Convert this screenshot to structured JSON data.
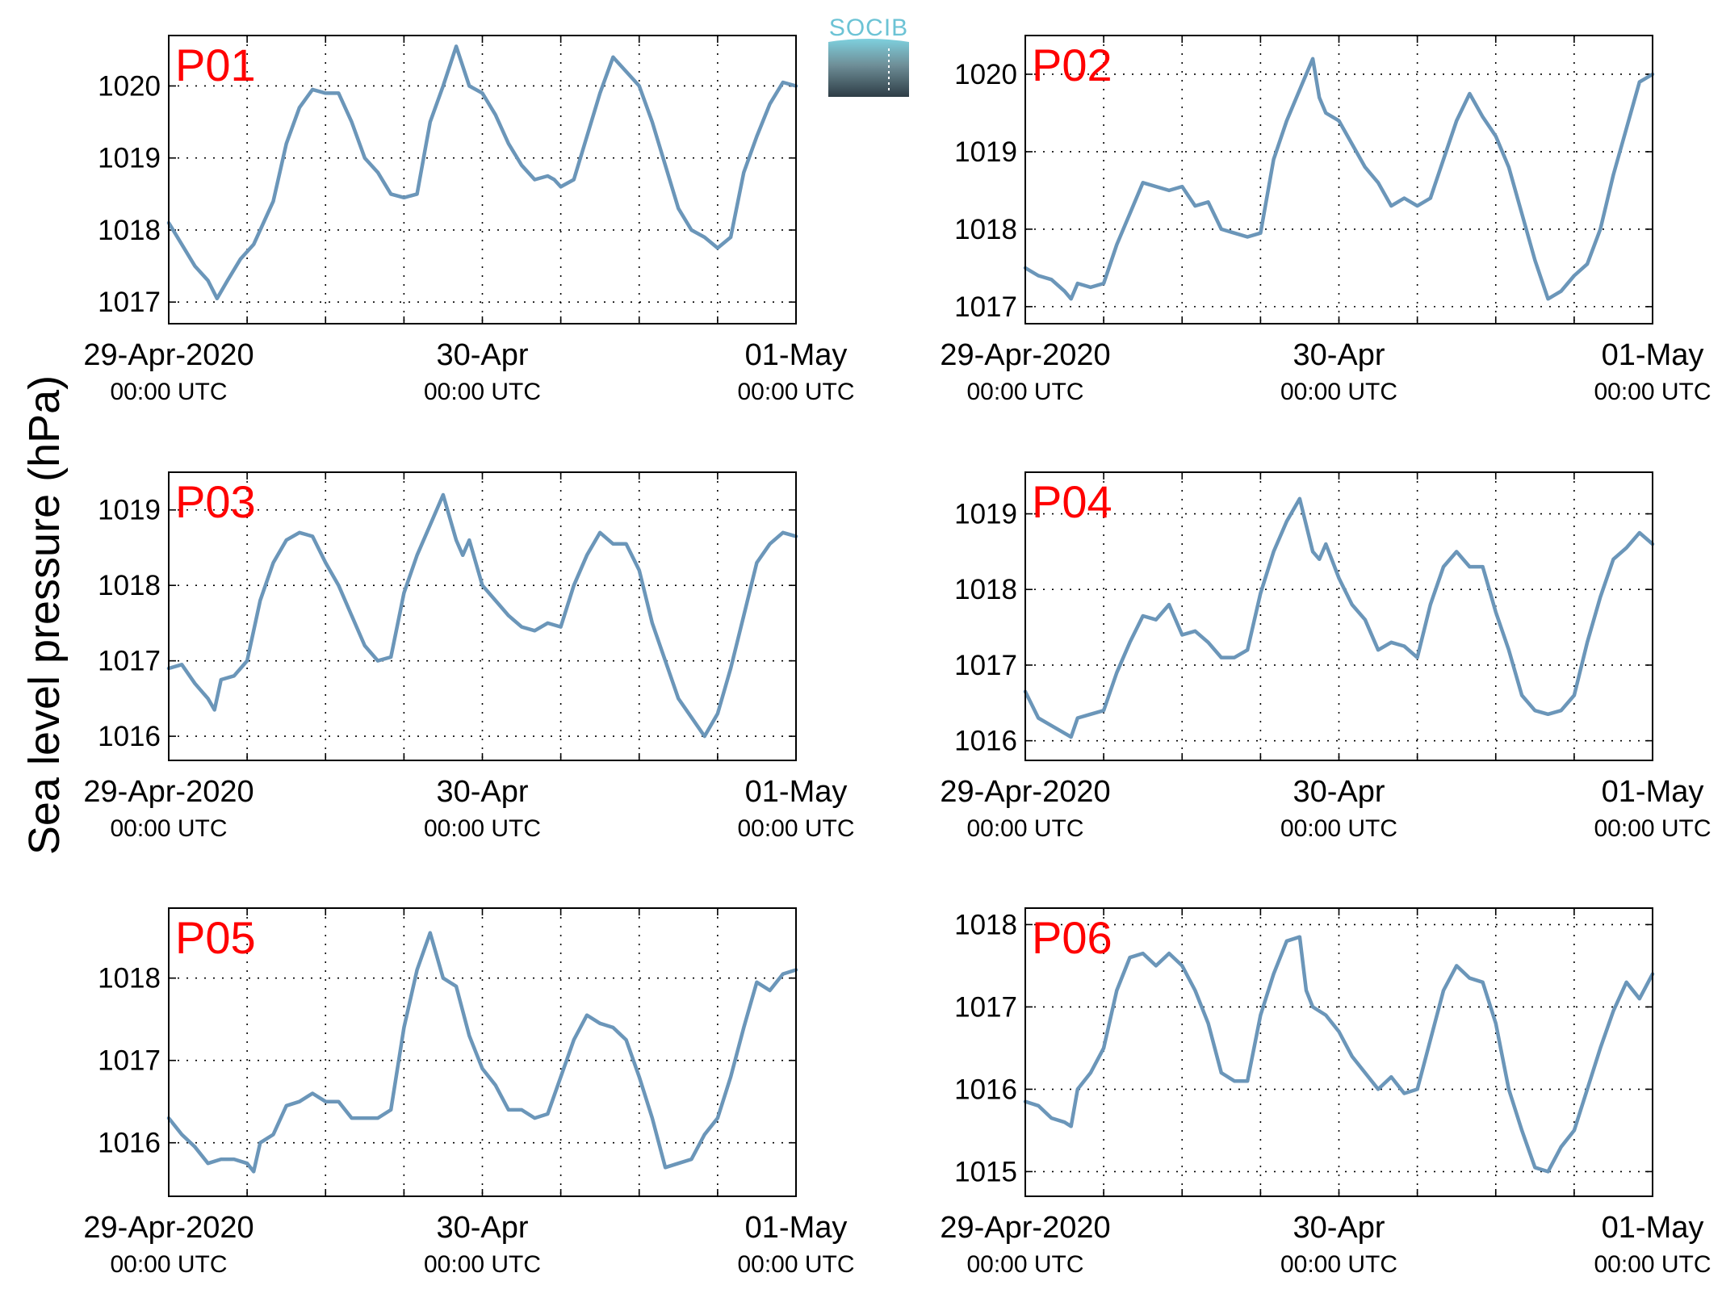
{
  "chart_data": {
    "ylabel": "Sea level pressure (hPa)",
    "logo_text": "SOCIB",
    "x_tick_labels": [
      {
        "main": "29-Apr-2020",
        "sub": "00:00 UTC"
      },
      {
        "main": "30-Apr",
        "sub": "00:00 UTC"
      },
      {
        "main": "01-May",
        "sub": "00:00 UTC"
      }
    ],
    "colors": {
      "line": "#6b96b9",
      "panel_label": "#ff0000",
      "logo": "#6cc3d5"
    },
    "grid": true,
    "panels": [
      {
        "id": "P01",
        "type": "line",
        "xlim": [
          0,
          48
        ],
        "ylim": [
          1016.7,
          1020.7
        ],
        "yticks": [
          1017,
          1018,
          1019,
          1020
        ],
        "x": [
          0,
          1,
          2,
          3,
          3.7,
          4.5,
          5.5,
          6.5,
          8,
          9,
          10,
          11,
          12,
          13,
          14,
          15,
          16,
          17,
          18,
          19,
          19.5,
          20,
          21,
          22,
          23,
          24,
          25,
          26,
          27,
          28,
          29,
          29.5,
          30,
          31,
          32,
          33,
          34,
          35,
          36,
          37,
          38,
          39,
          40,
          41,
          42,
          43,
          44,
          45,
          46,
          47,
          48
        ],
        "y": [
          1018.1,
          1017.8,
          1017.5,
          1017.3,
          1017.05,
          1017.3,
          1017.6,
          1017.8,
          1018.4,
          1019.2,
          1019.7,
          1019.95,
          1019.9,
          1019.9,
          1019.5,
          1019.0,
          1018.8,
          1018.5,
          1018.45,
          1018.5,
          1019.0,
          1019.5,
          1020.0,
          1020.55,
          1020.0,
          1019.9,
          1019.6,
          1019.2,
          1018.9,
          1018.7,
          1018.75,
          1018.7,
          1018.6,
          1018.7,
          1019.3,
          1019.9,
          1020.4,
          1020.2,
          1020.0,
          1019.5,
          1018.9,
          1018.3,
          1018.0,
          1017.9,
          1017.75,
          1017.9,
          1018.8,
          1019.3,
          1019.75,
          1020.05,
          1020.0
        ]
      },
      {
        "id": "P02",
        "type": "line",
        "xlim": [
          0,
          48
        ],
        "ylim": [
          1016.78,
          1020.5
        ],
        "yticks": [
          1017,
          1018,
          1019,
          1020
        ],
        "x": [
          0,
          1,
          2,
          3,
          3.5,
          4,
          5,
          6,
          7,
          8,
          9,
          10,
          11,
          12,
          13,
          14,
          15,
          16,
          17,
          18,
          19,
          20,
          21,
          22,
          22.5,
          23,
          24,
          25,
          26,
          27,
          28,
          29,
          30,
          31,
          32,
          33,
          34,
          35,
          36,
          37,
          38,
          39,
          40,
          41,
          42,
          43,
          44,
          45,
          46,
          47,
          48
        ],
        "y": [
          1017.5,
          1017.4,
          1017.35,
          1017.2,
          1017.1,
          1017.3,
          1017.25,
          1017.3,
          1017.8,
          1018.2,
          1018.6,
          1018.55,
          1018.5,
          1018.55,
          1018.3,
          1018.35,
          1018.0,
          1017.95,
          1017.9,
          1017.95,
          1018.9,
          1019.4,
          1019.8,
          1020.2,
          1019.7,
          1019.5,
          1019.4,
          1019.1,
          1018.8,
          1018.6,
          1018.3,
          1018.4,
          1018.3,
          1018.4,
          1018.9,
          1019.4,
          1019.75,
          1019.45,
          1019.2,
          1018.8,
          1018.2,
          1017.6,
          1017.1,
          1017.2,
          1017.4,
          1017.55,
          1018.0,
          1018.7,
          1019.3,
          1019.9,
          1020.0
        ]
      },
      {
        "id": "P03",
        "type": "line",
        "xlim": [
          0,
          48
        ],
        "ylim": [
          1015.68,
          1019.5
        ],
        "yticks": [
          1016,
          1017,
          1018,
          1019
        ],
        "x": [
          0,
          1,
          2,
          3,
          3.5,
          4,
          5,
          6,
          7,
          8,
          9,
          10,
          11,
          12,
          13,
          14,
          15,
          16,
          17,
          18,
          19,
          20,
          21,
          22,
          22.5,
          23,
          24,
          25,
          26,
          27,
          28,
          29,
          30,
          31,
          32,
          33,
          34,
          35,
          36,
          37,
          38,
          39,
          40,
          41,
          42,
          43,
          44,
          45,
          46,
          47,
          48
        ],
        "y": [
          1016.9,
          1016.95,
          1016.7,
          1016.5,
          1016.35,
          1016.75,
          1016.8,
          1017.0,
          1017.8,
          1018.3,
          1018.6,
          1018.7,
          1018.65,
          1018.3,
          1018.0,
          1017.6,
          1017.2,
          1017.0,
          1017.05,
          1017.9,
          1018.4,
          1018.8,
          1019.2,
          1018.6,
          1018.4,
          1018.6,
          1018.0,
          1017.8,
          1017.6,
          1017.45,
          1017.4,
          1017.5,
          1017.45,
          1018.0,
          1018.4,
          1018.7,
          1018.55,
          1018.55,
          1018.2,
          1017.5,
          1017.0,
          1016.5,
          1016.25,
          1016.0,
          1016.3,
          1016.9,
          1017.6,
          1018.3,
          1018.55,
          1018.7,
          1018.65
        ]
      },
      {
        "id": "P04",
        "type": "line",
        "xlim": [
          0,
          48
        ],
        "ylim": [
          1015.74,
          1019.55
        ],
        "yticks": [
          1016,
          1017,
          1018,
          1019
        ],
        "x": [
          0,
          1,
          2,
          3,
          3.5,
          4,
          5,
          6,
          7,
          8,
          9,
          10,
          11,
          12,
          13,
          14,
          15,
          16,
          17,
          18,
          19,
          20,
          21,
          22,
          22.5,
          23,
          24,
          25,
          26,
          27,
          28,
          29,
          30,
          31,
          32,
          33,
          34,
          35,
          36,
          37,
          38,
          39,
          40,
          41,
          42,
          43,
          44,
          45,
          46,
          47,
          48
        ],
        "y": [
          1016.65,
          1016.3,
          1016.2,
          1016.1,
          1016.05,
          1016.3,
          1016.35,
          1016.4,
          1016.9,
          1017.3,
          1017.65,
          1017.6,
          1017.8,
          1017.4,
          1017.45,
          1017.3,
          1017.1,
          1017.1,
          1017.2,
          1017.95,
          1018.5,
          1018.9,
          1019.2,
          1018.5,
          1018.4,
          1018.6,
          1018.15,
          1017.8,
          1017.6,
          1017.2,
          1017.3,
          1017.25,
          1017.1,
          1017.8,
          1018.3,
          1018.5,
          1018.3,
          1018.3,
          1017.7,
          1017.2,
          1016.6,
          1016.4,
          1016.35,
          1016.4,
          1016.6,
          1017.3,
          1017.9,
          1018.4,
          1018.55,
          1018.75,
          1018.6
        ]
      },
      {
        "id": "P05",
        "type": "line",
        "xlim": [
          0,
          48
        ],
        "ylim": [
          1015.35,
          1018.85
        ],
        "yticks": [
          1016,
          1017,
          1018
        ],
        "x": [
          0,
          1,
          2,
          3,
          4,
          5,
          6,
          6.5,
          7,
          8,
          9,
          10,
          11,
          12,
          13,
          14,
          15,
          16,
          17,
          18,
          19,
          20,
          21,
          21.5,
          22,
          23,
          24,
          25,
          26,
          27,
          28,
          29,
          30,
          31,
          32,
          33,
          34,
          35,
          36,
          37,
          38,
          39,
          40,
          41,
          42,
          43,
          44,
          45,
          46,
          47,
          48
        ],
        "y": [
          1016.3,
          1016.1,
          1015.95,
          1015.75,
          1015.8,
          1015.8,
          1015.75,
          1015.65,
          1016.0,
          1016.1,
          1016.45,
          1016.5,
          1016.6,
          1016.5,
          1016.5,
          1016.3,
          1016.3,
          1016.3,
          1016.4,
          1017.4,
          1018.1,
          1018.55,
          1018.0,
          1017.95,
          1017.9,
          1017.3,
          1016.9,
          1016.7,
          1016.4,
          1016.4,
          1016.3,
          1016.35,
          1016.8,
          1017.25,
          1017.55,
          1017.45,
          1017.4,
          1017.25,
          1016.8,
          1016.3,
          1015.7,
          1015.75,
          1015.8,
          1016.1,
          1016.3,
          1016.8,
          1017.4,
          1017.95,
          1017.85,
          1018.05,
          1018.1
        ]
      },
      {
        "id": "P06",
        "type": "line",
        "xlim": [
          0,
          48
        ],
        "ylim": [
          1014.7,
          1018.2
        ],
        "yticks": [
          1015,
          1016,
          1017,
          1018
        ],
        "x": [
          0,
          1,
          2,
          3,
          3.5,
          4,
          5,
          6,
          7,
          8,
          9,
          10,
          11,
          12,
          13,
          14,
          15,
          16,
          17,
          18,
          19,
          20,
          21,
          21.5,
          22,
          23,
          24,
          25,
          26,
          27,
          28,
          29,
          30,
          31,
          32,
          33,
          34,
          35,
          36,
          37,
          38,
          39,
          40,
          41,
          42,
          43,
          44,
          45,
          46,
          47,
          48
        ],
        "y": [
          1015.85,
          1015.8,
          1015.65,
          1015.6,
          1015.55,
          1016.0,
          1016.2,
          1016.5,
          1017.2,
          1017.6,
          1017.65,
          1017.5,
          1017.65,
          1017.5,
          1017.2,
          1016.8,
          1016.2,
          1016.1,
          1016.1,
          1016.9,
          1017.4,
          1017.8,
          1017.85,
          1017.2,
          1017.0,
          1016.9,
          1016.7,
          1016.4,
          1016.2,
          1016.0,
          1016.15,
          1015.95,
          1016.0,
          1016.6,
          1017.2,
          1017.5,
          1017.35,
          1017.3,
          1016.8,
          1016.0,
          1015.5,
          1015.05,
          1015.0,
          1015.3,
          1015.5,
          1016.0,
          1016.5,
          1016.95,
          1017.3,
          1017.1,
          1017.4
        ]
      }
    ]
  }
}
